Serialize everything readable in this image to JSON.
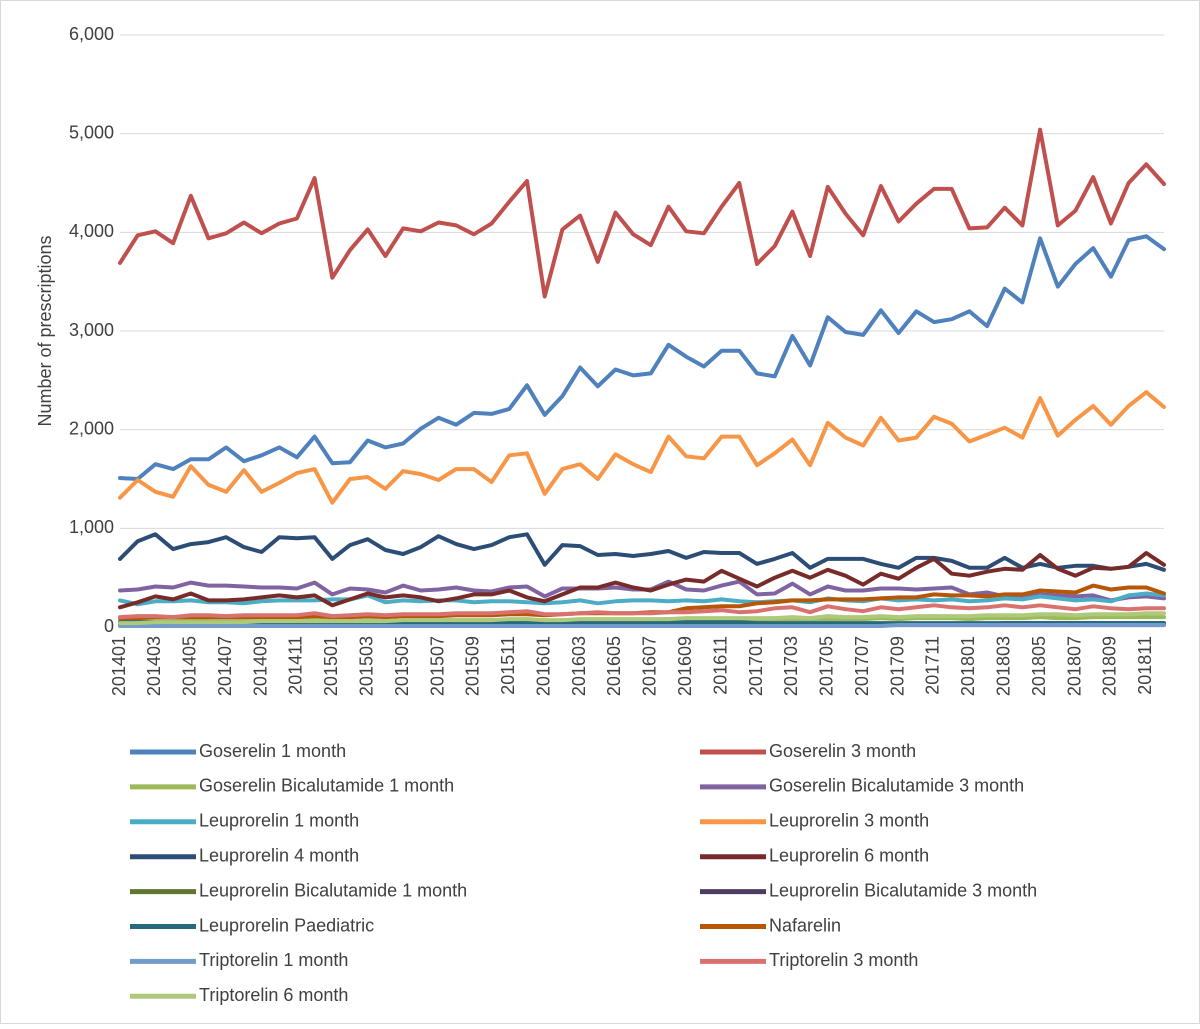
{
  "chart_data": {
    "type": "line",
    "y_label": "Number of prescriptions",
    "categories": [
      "201401",
      null,
      "201403",
      null,
      "201405",
      null,
      "201407",
      null,
      "201409",
      null,
      "201411",
      null,
      "201501",
      null,
      "201503",
      null,
      "201505",
      null,
      "201507",
      null,
      "201509",
      null,
      "201511",
      null,
      "201601",
      null,
      "201603",
      null,
      "201605",
      null,
      "201607",
      null,
      "201609",
      null,
      "201611",
      null,
      "201701",
      null,
      "201703",
      null,
      "201705",
      null,
      "201707",
      null,
      "201709",
      null,
      "201711",
      null,
      "201801",
      null,
      "201803",
      null,
      "201805",
      null,
      "201807",
      null,
      "201809",
      null,
      "201811",
      null
    ],
    "ylim": [
      0,
      6000
    ],
    "yticks": [
      0,
      {
        "value": 1000,
        "label": "1,000"
      },
      {
        "value": 2000,
        "label": "2,000"
      },
      {
        "value": 3000,
        "label": "3,000"
      },
      {
        "value": 4000,
        "label": "4,000"
      },
      {
        "value": 5000,
        "label": "5,000"
      },
      {
        "value": 6000,
        "label": "6,000"
      }
    ],
    "grid": true,
    "legend": "bottom",
    "series": [
      {
        "name": "Goserelin 1 month",
        "color": "#4f81bd",
        "values": [
          1510,
          1500,
          1650,
          1600,
          1700,
          1700,
          1820,
          1680,
          1740,
          1820,
          1720,
          1930,
          1660,
          1670,
          1890,
          1820,
          1860,
          2010,
          2120,
          2050,
          2170,
          2160,
          2210,
          2450,
          2150,
          2340,
          2630,
          2440,
          2610,
          2550,
          2570,
          2860,
          2740,
          2640,
          2800,
          2800,
          2570,
          2540,
          2950,
          2650,
          3140,
          2990,
          2960,
          3210,
          2980,
          3200,
          3090,
          3120,
          3200,
          3050,
          3430,
          3290,
          3940,
          3450,
          3680,
          3840,
          3550,
          3920,
          3960,
          3830
        ]
      },
      {
        "name": "Goserelin 3 month",
        "color": "#c0504d",
        "values": [
          3690,
          3970,
          4010,
          3890,
          4370,
          3940,
          3990,
          4100,
          3990,
          4090,
          4140,
          4550,
          3540,
          3820,
          4030,
          3760,
          4040,
          4010,
          4100,
          4070,
          3980,
          4090,
          4310,
          4520,
          3350,
          4030,
          4170,
          3700,
          4200,
          3980,
          3870,
          4260,
          4010,
          3990,
          4260,
          4500,
          3680,
          3860,
          4210,
          3760,
          4460,
          4190,
          3970,
          4470,
          4110,
          4290,
          4440,
          4440,
          4040,
          4050,
          4250,
          4070,
          5040,
          4070,
          4220,
          4560,
          4090,
          4500,
          4690,
          4490
        ]
      },
      {
        "name": "Goserelin Bicalutamide 1 month",
        "color": "#9bbb59",
        "values": [
          60,
          60,
          60,
          60,
          70,
          60,
          60,
          60,
          60,
          70,
          70,
          70,
          60,
          60,
          70,
          60,
          70,
          70,
          70,
          70,
          70,
          70,
          70,
          80,
          60,
          70,
          70,
          70,
          70,
          70,
          70,
          80,
          80,
          80,
          80,
          80,
          70,
          80,
          80,
          80,
          80,
          80,
          80,
          90,
          80,
          90,
          90,
          90,
          80,
          90,
          90,
          90,
          100,
          90,
          90,
          100,
          100,
          100,
          100,
          100
        ]
      },
      {
        "name": "Goserelin Bicalutamide 3 month",
        "color": "#8064a2",
        "values": [
          370,
          380,
          410,
          400,
          450,
          420,
          420,
          410,
          400,
          400,
          390,
          450,
          330,
          390,
          380,
          350,
          420,
          370,
          380,
          400,
          370,
          360,
          400,
          410,
          310,
          390,
          390,
          390,
          400,
          380,
          380,
          460,
          380,
          370,
          420,
          460,
          330,
          340,
          440,
          330,
          410,
          370,
          370,
          390,
          390,
          380,
          390,
          400,
          330,
          350,
          310,
          310,
          330,
          320,
          310,
          320,
          270,
          300,
          310,
          290
        ]
      },
      {
        "name": "Leuprorelin 1 month",
        "color": "#4bacc6",
        "values": [
          270,
          230,
          260,
          260,
          270,
          250,
          250,
          240,
          260,
          270,
          270,
          270,
          280,
          280,
          320,
          250,
          270,
          260,
          270,
          270,
          250,
          260,
          260,
          250,
          240,
          250,
          270,
          240,
          260,
          270,
          270,
          260,
          270,
          260,
          280,
          260,
          250,
          260,
          270,
          250,
          290,
          270,
          260,
          290,
          270,
          280,
          270,
          280,
          260,
          270,
          290,
          280,
          310,
          290,
          270,
          280,
          260,
          320,
          340,
          320
        ]
      },
      {
        "name": "Leuprorelin 3 month",
        "color": "#f79646",
        "values": [
          1310,
          1490,
          1370,
          1320,
          1630,
          1440,
          1370,
          1590,
          1370,
          1460,
          1560,
          1600,
          1260,
          1500,
          1520,
          1400,
          1580,
          1550,
          1490,
          1600,
          1600,
          1470,
          1740,
          1760,
          1350,
          1600,
          1650,
          1500,
          1750,
          1650,
          1570,
          1930,
          1730,
          1710,
          1930,
          1930,
          1640,
          1760,
          1900,
          1640,
          2070,
          1920,
          1840,
          2120,
          1890,
          1920,
          2130,
          2060,
          1880,
          1950,
          2020,
          1920,
          2320,
          1940,
          2100,
          2240,
          2050,
          2240,
          2380,
          2230
        ]
      },
      {
        "name": "Leuprorelin 4 month",
        "color": "#2c4d75",
        "values": [
          690,
          870,
          940,
          790,
          840,
          860,
          910,
          810,
          760,
          910,
          900,
          910,
          690,
          830,
          890,
          780,
          740,
          810,
          920,
          840,
          790,
          830,
          910,
          940,
          630,
          830,
          820,
          730,
          740,
          720,
          740,
          770,
          700,
          760,
          750,
          750,
          640,
          690,
          750,
          600,
          690,
          690,
          690,
          640,
          600,
          700,
          700,
          670,
          600,
          600,
          700,
          600,
          640,
          600,
          620,
          620,
          590,
          610,
          640,
          580
        ]
      },
      {
        "name": "Leuprorelin 6 month",
        "color": "#772c2a",
        "values": [
          200,
          250,
          310,
          280,
          340,
          270,
          270,
          280,
          300,
          320,
          300,
          320,
          220,
          280,
          340,
          300,
          320,
          300,
          260,
          290,
          330,
          330,
          370,
          300,
          260,
          330,
          400,
          400,
          450,
          400,
          370,
          430,
          480,
          460,
          570,
          490,
          410,
          500,
          570,
          500,
          580,
          520,
          430,
          540,
          490,
          600,
          690,
          540,
          520,
          560,
          590,
          580,
          730,
          590,
          520,
          600,
          590,
          610,
          750,
          630
        ]
      },
      {
        "name": "Leuprorelin Bicalutamide 1 month",
        "color": "#5f7530",
        "values": [
          20,
          20,
          20,
          20,
          20,
          20,
          20,
          20,
          20,
          20,
          20,
          20,
          20,
          20,
          20,
          20,
          20,
          20,
          20,
          20,
          20,
          20,
          20,
          20,
          10,
          20,
          20,
          20,
          20,
          20,
          20,
          20,
          20,
          20,
          20,
          20,
          10,
          20,
          20,
          20,
          20,
          20,
          20,
          20,
          20,
          20,
          20,
          20,
          20,
          20,
          20,
          20,
          20,
          20,
          20,
          20,
          20,
          20,
          20,
          20
        ]
      },
      {
        "name": "Leuprorelin Bicalutamide 3 month",
        "color": "#4d3b62",
        "values": [
          null,
          null,
          null,
          null,
          null,
          null,
          null,
          null,
          null,
          null,
          null,
          null,
          null,
          null,
          null,
          null,
          null,
          null,
          null,
          null,
          null,
          null,
          null,
          null,
          null,
          null,
          null,
          null,
          null,
          null,
          null,
          null,
          null,
          null,
          null,
          null,
          10,
          10,
          20,
          20,
          20,
          20,
          20,
          30,
          30,
          30,
          30,
          30,
          30,
          30,
          40,
          40,
          40,
          40,
          40,
          40,
          40,
          40,
          40,
          40
        ]
      },
      {
        "name": "Leuprorelin Paediatric",
        "color": "#276a7c",
        "values": [
          50,
          50,
          50,
          50,
          50,
          50,
          50,
          50,
          50,
          50,
          50,
          50,
          40,
          50,
          50,
          50,
          50,
          50,
          50,
          40,
          50,
          50,
          50,
          50,
          40,
          40,
          50,
          50,
          50,
          50,
          50,
          50,
          50,
          50,
          50,
          50,
          40,
          40,
          40,
          40,
          40,
          40,
          40,
          40,
          40,
          40,
          40,
          40,
          40,
          40,
          40,
          40,
          40,
          40,
          40,
          40,
          40,
          40,
          40,
          40
        ]
      },
      {
        "name": "Nafarelin",
        "color": "#b65708",
        "values": [
          90,
          90,
          100,
          100,
          100,
          100,
          100,
          100,
          100,
          100,
          100,
          110,
          100,
          100,
          110,
          100,
          110,
          110,
          110,
          120,
          120,
          120,
          130,
          130,
          120,
          130,
          140,
          140,
          140,
          140,
          150,
          150,
          190,
          200,
          210,
          210,
          240,
          250,
          270,
          270,
          280,
          280,
          280,
          290,
          300,
          300,
          330,
          320,
          320,
          310,
          330,
          330,
          370,
          360,
          350,
          420,
          380,
          400,
          400,
          340
        ]
      },
      {
        "name": "Triptorelin 1 month",
        "color": "#729aca",
        "values": [
          10,
          10,
          10,
          10,
          10,
          10,
          10,
          10,
          10,
          10,
          10,
          10,
          10,
          10,
          10,
          10,
          10,
          10,
          10,
          10,
          10,
          10,
          10,
          10,
          10,
          10,
          10,
          10,
          10,
          10,
          10,
          10,
          10,
          10,
          10,
          10,
          10,
          10,
          10,
          10,
          10,
          10,
          10,
          10,
          20,
          20,
          20,
          20,
          20,
          20,
          20,
          20,
          20,
          20,
          20,
          20,
          20,
          20,
          20,
          20
        ]
      },
      {
        "name": "Triptorelin 3 month",
        "color": "#d9726f",
        "values": [
          100,
          110,
          110,
          100,
          120,
          120,
          110,
          120,
          120,
          120,
          120,
          140,
          110,
          120,
          130,
          120,
          130,
          130,
          130,
          140,
          140,
          140,
          150,
          160,
          130,
          130,
          140,
          150,
          140,
          140,
          140,
          150,
          150,
          160,
          170,
          150,
          160,
          190,
          200,
          150,
          210,
          180,
          160,
          200,
          180,
          200,
          220,
          200,
          190,
          200,
          220,
          200,
          220,
          200,
          180,
          210,
          190,
          180,
          190,
          190
        ]
      },
      {
        "name": "Triptorelin 6 month",
        "color": "#afc97a",
        "values": [
          40,
          40,
          50,
          50,
          50,
          50,
          50,
          50,
          60,
          60,
          60,
          60,
          60,
          60,
          60,
          60,
          70,
          70,
          70,
          70,
          70,
          70,
          80,
          80,
          70,
          70,
          80,
          80,
          80,
          80,
          80,
          80,
          90,
          90,
          90,
          90,
          90,
          90,
          100,
          90,
          110,
          100,
          100,
          110,
          100,
          110,
          110,
          110,
          110,
          120,
          120,
          120,
          130,
          130,
          120,
          130,
          130,
          130,
          140,
          140
        ]
      }
    ]
  }
}
